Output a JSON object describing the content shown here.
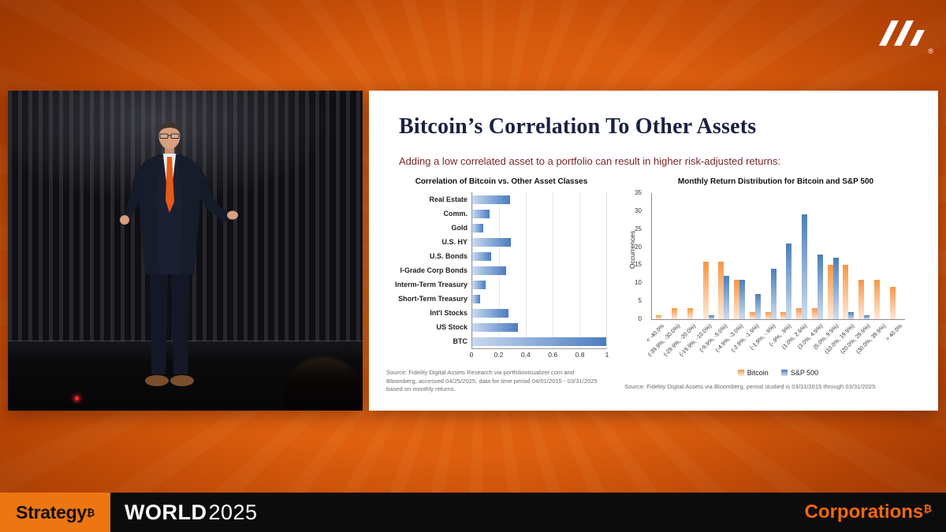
{
  "colors": {
    "background_orange": "#d45106",
    "footer_block_orange": "#ee7612",
    "corporations_orange": "#f2690b",
    "correlation_bar_blue": "#4a7cc0",
    "bitcoin_bar_orange": "#f79646",
    "sp500_bar_blue": "#4a7ebb"
  },
  "header": {
    "logo": "strategy-logo",
    "registered_mark": "®"
  },
  "video": {
    "description": "speaker-on-stage"
  },
  "slide": {
    "title": "Bitcoin’s Correlation To Other Assets",
    "subtitle": "Adding a low correlated asset to a portfolio can result in higher risk-adjusted returns:"
  },
  "chart_data": [
    {
      "type": "bar",
      "orientation": "horizontal",
      "title": "Correlation of Bitcoin vs. Other Asset Classes",
      "categories": [
        "Real Estate",
        "Comm.",
        "Gold",
        "U.S. HY",
        "U.S. Bonds",
        "I-Grade Corp Bonds",
        "Interm-Term Treasury",
        "Short-Term Treasury",
        "Int'l Stocks",
        "US Stock",
        "BTC"
      ],
      "values": [
        0.28,
        0.13,
        0.08,
        0.29,
        0.14,
        0.25,
        0.1,
        0.06,
        0.27,
        0.34,
        1.0
      ],
      "xlim": [
        0,
        1
      ],
      "xticks": [
        0,
        0.2,
        0.4,
        0.6,
        0.8,
        1
      ],
      "grid": true,
      "bar_color_start": "#c9d9ef",
      "bar_color_end": "#4a7cc0",
      "source": "Source: Fidelity Digital Assets Research via portfoliovisualizer.com and Bloomberg, accessed 04/25/2025, data for time period 04/01/2015 - 03/31/2025 based on monthly returns."
    },
    {
      "type": "bar",
      "title": "Monthly Return Distribution for Bitcoin and S&P 500",
      "ylabel": "Occurrences",
      "ylim": [
        0,
        35
      ],
      "yticks": [
        0,
        5,
        10,
        15,
        20,
        25,
        30,
        35
      ],
      "grid": false,
      "legend_position": "bottom",
      "categories": [
        "< -40.0%",
        "(-39.9%, -30.0%)",
        "(-29.9%, -20.0%)",
        "(-19.9%, -10.0%)",
        "(-9.9%, -5.0%)",
        "(-4.9%, -3.0%)",
        "(-2.9%, -1.9%)",
        "(-1.9%, -.9%)",
        "(-.9%, .9%)",
        "(1.0%, 2.9%)",
        "(3.0%, 4.9%)",
        "(5.0%, 9.9%)",
        "(10.0%, 19.9%)",
        "(20.0%, 29.9%)",
        "(30.0%, 39.9%)",
        "> 40.0%"
      ],
      "series": [
        {
          "name": "Bitcoin",
          "color_top": "#f79646",
          "color_bottom": "#fde9d9",
          "values": [
            1,
            3,
            3,
            16,
            16,
            11,
            2,
            2,
            2,
            3,
            3,
            15,
            15,
            11,
            11,
            9
          ]
        },
        {
          "name": "S&P 500",
          "color_top": "#4a7ebb",
          "color_bottom": "#cfdcf0",
          "values": [
            0,
            0,
            0,
            1,
            12,
            11,
            7,
            14,
            21,
            29,
            18,
            17,
            2,
            1,
            0,
            0
          ]
        }
      ],
      "source": "Source: Fidelity Digital Assets via Bloomberg, period studied is 03/31/2015 through 03/31/2025."
    }
  ],
  "footer": {
    "brand": "Strategy",
    "brand_sup": "₿",
    "event": "WORLD",
    "year": "2025",
    "right": "Corporations",
    "right_sup": "₿"
  }
}
